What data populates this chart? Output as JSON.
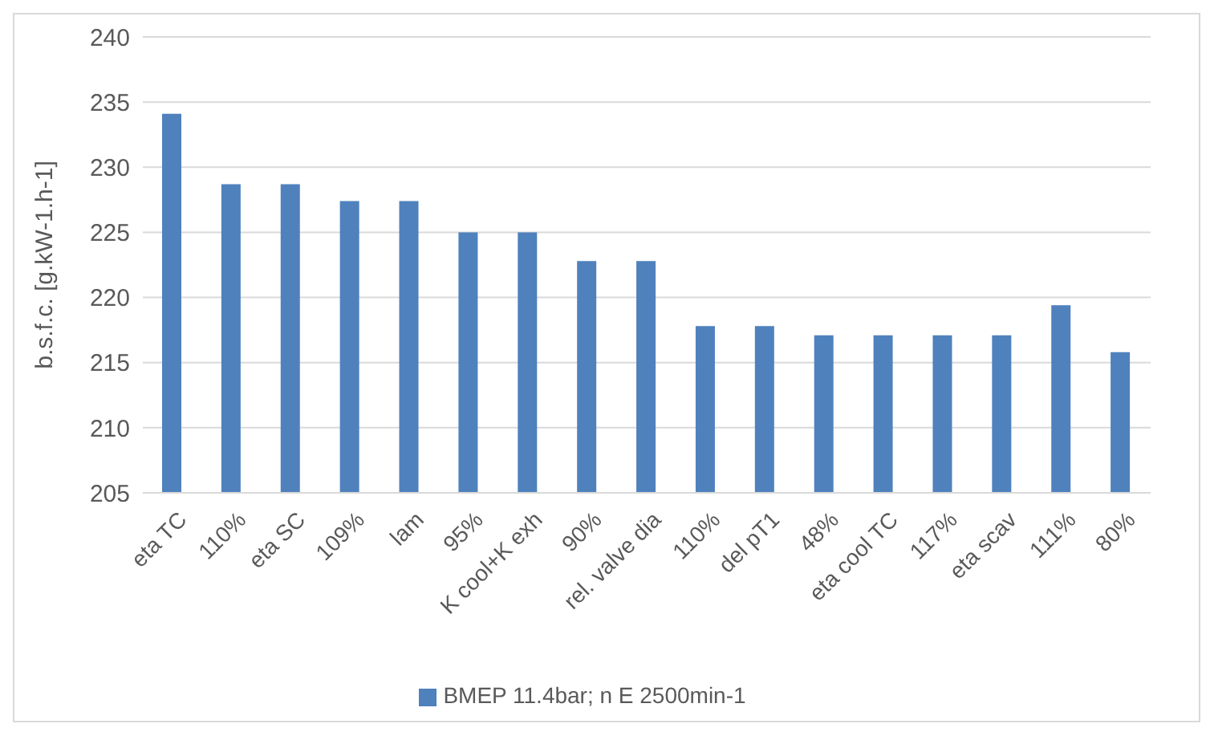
{
  "chart_data": {
    "type": "bar",
    "ylabel": "b.s.f.c. [g.kW-1.h-1]",
    "categories": [
      "eta TC",
      "110%",
      "eta SC",
      "109%",
      "lam",
      "95%",
      "K cool+K exh",
      "90%",
      "rel. valve dia",
      "110%",
      "del pT1",
      "48%",
      "eta cool TC",
      "117%",
      "eta scav",
      "111%",
      "80%"
    ],
    "series": [
      {
        "name": "BMEP 11.4bar;  n E 2500min-1",
        "color": "#4f81bd",
        "values": [
          234.1,
          228.7,
          228.7,
          227.4,
          227.4,
          225.0,
          225.0,
          222.8,
          222.8,
          217.8,
          217.8,
          217.1,
          217.1,
          217.1,
          217.1,
          219.4,
          215.8
        ]
      }
    ],
    "ylim": [
      205,
      240
    ],
    "yticks": [
      205,
      210,
      215,
      220,
      225,
      230,
      235,
      240
    ],
    "grid": "y",
    "legend": "bottom"
  }
}
